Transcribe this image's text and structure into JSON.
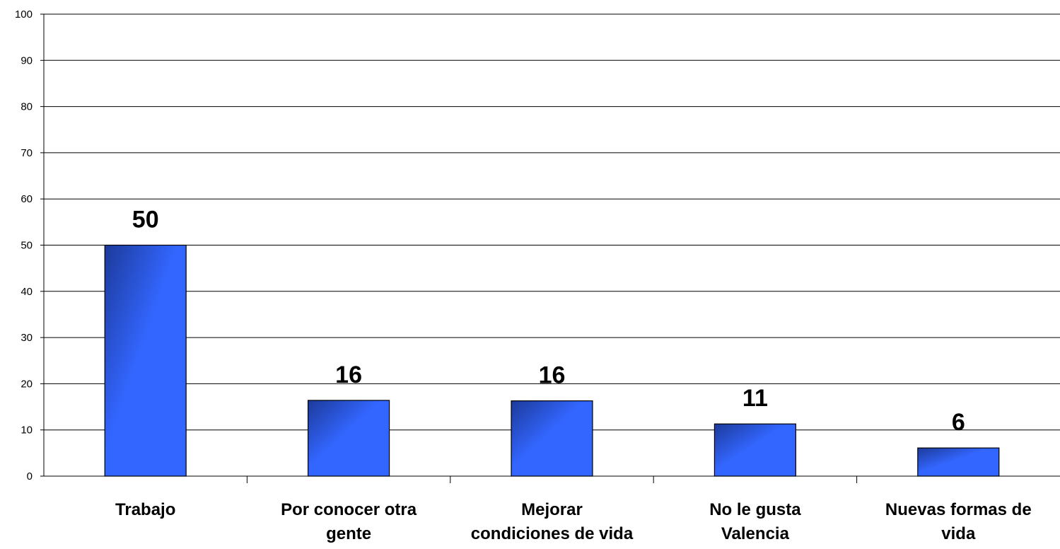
{
  "chart_data": {
    "type": "bar",
    "categories": [
      [
        "Trabajo"
      ],
      [
        "Por conocer otra",
        "gente"
      ],
      [
        "Mejorar",
        "condiciones de vida"
      ],
      [
        "No le gusta",
        "Valencia"
      ],
      [
        "Nuevas formas de",
        "vida"
      ]
    ],
    "values": [
      50,
      16.4,
      16.3,
      11.3,
      6.1
    ],
    "data_labels": [
      "50",
      "16",
      "16",
      "11",
      "6"
    ],
    "yticks": [
      "0",
      "10",
      "20",
      "30",
      "40",
      "50",
      "60",
      "70",
      "80",
      "90",
      "100"
    ],
    "ylim": [
      0,
      100
    ],
    "grid": true,
    "legend": "none",
    "colors": {
      "bar_dark": "#1c3a9a",
      "bar_light": "#3366ff",
      "gridline": "#000000"
    }
  }
}
